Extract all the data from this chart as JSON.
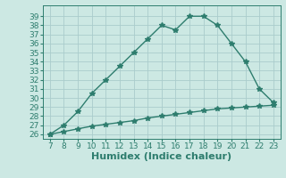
{
  "x": [
    7,
    8,
    9,
    10,
    11,
    12,
    13,
    14,
    15,
    16,
    17,
    18,
    19,
    20,
    21,
    22,
    23
  ],
  "y_humidex": [
    26,
    27,
    28.5,
    30.5,
    32,
    33.5,
    35,
    36.5,
    38,
    37.5,
    39,
    39,
    38,
    36,
    34,
    31,
    29.5
  ],
  "y_temp": [
    26,
    26.3,
    26.6,
    26.9,
    27.1,
    27.3,
    27.5,
    27.8,
    28.0,
    28.2,
    28.4,
    28.6,
    28.8,
    28.9,
    29.0,
    29.1,
    29.2
  ],
  "line_color": "#2e7d6e",
  "bg_color": "#cce8e3",
  "grid_color": "#aacccc",
  "xlabel": "Humidex (Indice chaleur)",
  "xlim": [
    6.5,
    23.5
  ],
  "ylim": [
    25.5,
    40.2
  ],
  "yticks": [
    26,
    27,
    28,
    29,
    30,
    31,
    32,
    33,
    34,
    35,
    36,
    37,
    38,
    39
  ],
  "xticks": [
    7,
    8,
    9,
    10,
    11,
    12,
    13,
    14,
    15,
    16,
    17,
    18,
    19,
    20,
    21,
    22,
    23
  ],
  "marker": "*",
  "markersize": 4,
  "linewidth": 1.0,
  "xlabel_fontsize": 8,
  "tick_fontsize": 6.5
}
